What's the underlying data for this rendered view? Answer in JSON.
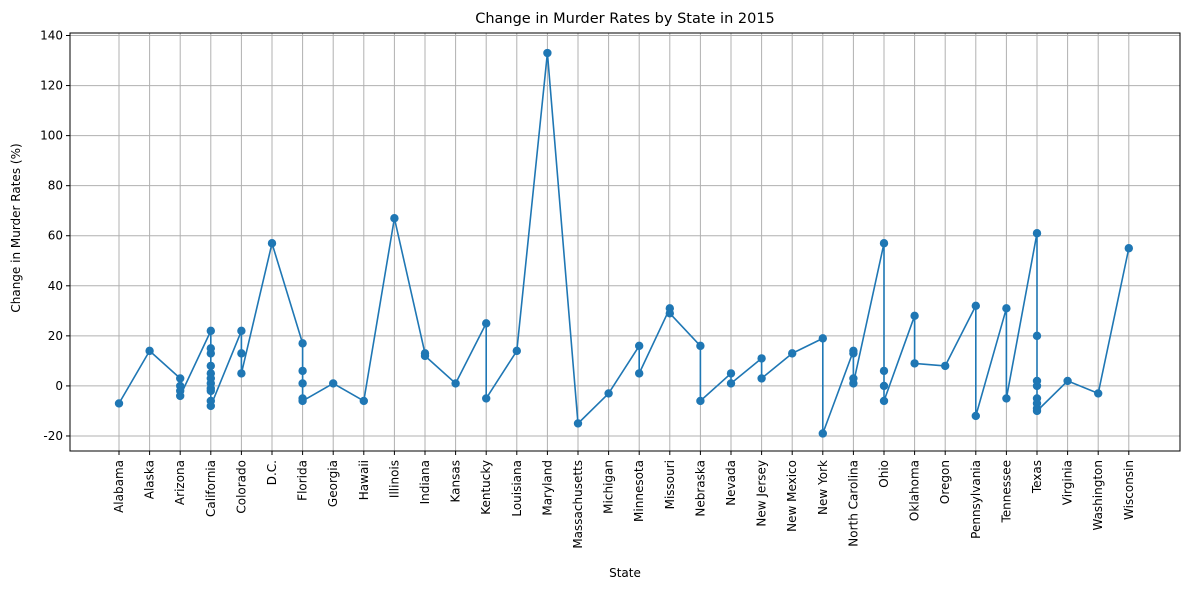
{
  "chart_data": {
    "type": "line",
    "title": "Change in Murder Rates by State in 2015",
    "xlabel": "State",
    "ylabel": "Change in Murder Rates (%)",
    "ylim": [
      -26,
      141
    ],
    "yticks": [
      -20,
      0,
      20,
      40,
      60,
      80,
      100,
      120,
      140
    ],
    "grid": true,
    "marker": "circle",
    "color": "#1f77b4",
    "categories": [
      "Alabama",
      "Alaska",
      "Arizona",
      "California",
      "Colorado",
      "D.C.",
      "Florida",
      "Georgia",
      "Hawaii",
      "Illinois",
      "Indiana",
      "Kansas",
      "Kentucky",
      "Louisiana",
      "Maryland",
      "Massachusetts",
      "Michigan",
      "Minnesota",
      "Missouri",
      "Nebraska",
      "Nevada",
      "New Jersey",
      "New Mexico",
      "New York",
      "North Carolina",
      "Ohio",
      "Oklahoma",
      "Oregon",
      "Pennsylvania",
      "Tennessee",
      "Texas",
      "Virginia",
      "Washington",
      "Wisconsin"
    ],
    "points": [
      [
        "Alabama",
        -7
      ],
      [
        "Alaska",
        14
      ],
      [
        "Arizona",
        3
      ],
      [
        "Arizona",
        0
      ],
      [
        "Arizona",
        -2
      ],
      [
        "Arizona",
        -4
      ],
      [
        "California",
        22
      ],
      [
        "California",
        15
      ],
      [
        "California",
        13
      ],
      [
        "California",
        8
      ],
      [
        "California",
        5
      ],
      [
        "California",
        3
      ],
      [
        "California",
        1
      ],
      [
        "California",
        -1
      ],
      [
        "California",
        -2
      ],
      [
        "California",
        -6
      ],
      [
        "California",
        -8
      ],
      [
        "Colorado",
        22
      ],
      [
        "Colorado",
        13
      ],
      [
        "Colorado",
        5
      ],
      [
        "D.C.",
        57
      ],
      [
        "Florida",
        17
      ],
      [
        "Florida",
        6
      ],
      [
        "Florida",
        1
      ],
      [
        "Florida",
        -5
      ],
      [
        "Florida",
        -6
      ],
      [
        "Georgia",
        1
      ],
      [
        "Hawaii",
        -6
      ],
      [
        "Illinois",
        67
      ],
      [
        "Indiana",
        13
      ],
      [
        "Indiana",
        12
      ],
      [
        "Kansas",
        1
      ],
      [
        "Kentucky",
        25
      ],
      [
        "Kentucky",
        -5
      ],
      [
        "Louisiana",
        14
      ],
      [
        "Maryland",
        133
      ],
      [
        "Massachusetts",
        -15
      ],
      [
        "Michigan",
        -3
      ],
      [
        "Minnesota",
        16
      ],
      [
        "Minnesota",
        5
      ],
      [
        "Missouri",
        31
      ],
      [
        "Missouri",
        29
      ],
      [
        "Nebraska",
        16
      ],
      [
        "Nebraska",
        -6
      ],
      [
        "Nevada",
        5
      ],
      [
        "Nevada",
        1
      ],
      [
        "New Jersey",
        11
      ],
      [
        "New Jersey",
        3
      ],
      [
        "New Mexico",
        13
      ],
      [
        "New York",
        19
      ],
      [
        "New York",
        -19
      ],
      [
        "North Carolina",
        14
      ],
      [
        "North Carolina",
        13
      ],
      [
        "North Carolina",
        3
      ],
      [
        "North Carolina",
        1
      ],
      [
        "Ohio",
        57
      ],
      [
        "Ohio",
        6
      ],
      [
        "Ohio",
        0
      ],
      [
        "Ohio",
        -6
      ],
      [
        "Oklahoma",
        28
      ],
      [
        "Oklahoma",
        9
      ],
      [
        "Oregon",
        8
      ],
      [
        "Pennsylvania",
        32
      ],
      [
        "Pennsylvania",
        -12
      ],
      [
        "Tennessee",
        31
      ],
      [
        "Tennessee",
        -5
      ],
      [
        "Texas",
        61
      ],
      [
        "Texas",
        20
      ],
      [
        "Texas",
        2
      ],
      [
        "Texas",
        0
      ],
      [
        "Texas",
        -5
      ],
      [
        "Texas",
        -7
      ],
      [
        "Texas",
        -9
      ],
      [
        "Texas",
        -10
      ],
      [
        "Virginia",
        2
      ],
      [
        "Washington",
        -3
      ],
      [
        "Wisconsin",
        55
      ]
    ]
  }
}
